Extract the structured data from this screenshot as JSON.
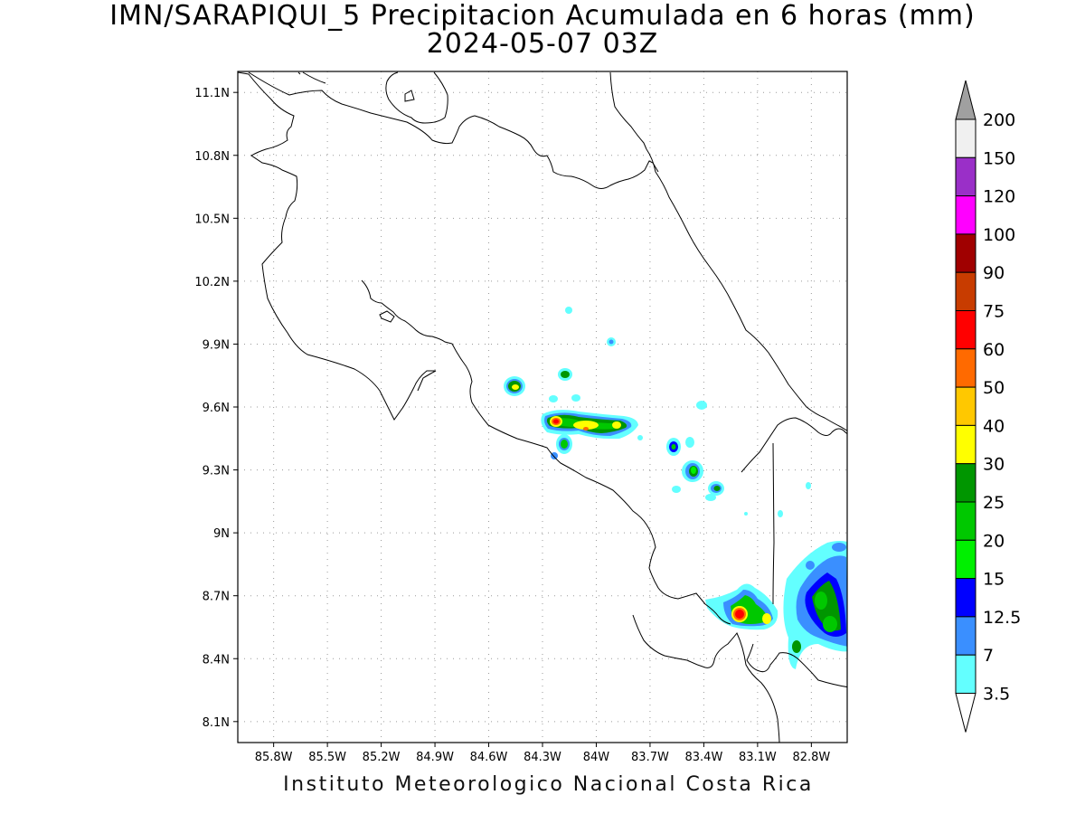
{
  "title": {
    "line1": "IMN/SARAPIQUI_5 Precipitacion Acumulada en 6 horas (mm)",
    "line2": "2024-05-07 03Z"
  },
  "footer": "Instituto Meteorologico Nacional Costa Rica",
  "map": {
    "projection": "lat-lon",
    "lon_range": [
      -86.0,
      -82.6
    ],
    "lat_range": [
      8.0,
      11.2
    ],
    "grid": "dotted",
    "lon_ticks": [
      "85.8W",
      "85.5W",
      "85.2W",
      "84.9W",
      "84.6W",
      "84.3W",
      "84W",
      "83.7W",
      "83.4W",
      "83.1W",
      "82.8W"
    ],
    "lat_ticks": [
      "11.1N",
      "10.8N",
      "10.5N",
      "10.2N",
      "9.9N",
      "9.6N",
      "9.3N",
      "9N",
      "8.7N",
      "8.4N",
      "8.1N"
    ]
  },
  "colorbar": {
    "labels": [
      "200",
      "150",
      "120",
      "100",
      "90",
      "75",
      "60",
      "50",
      "40",
      "30",
      "25",
      "20",
      "15",
      "12.5",
      "7",
      "3.5"
    ],
    "colors": [
      "#f0f0f0",
      "#9a2fc8",
      "#ff00ff",
      "#a00000",
      "#c83c00",
      "#ff0000",
      "#ff6a00",
      "#ffc800",
      "#ffff00",
      "#009600",
      "#00c800",
      "#00f000",
      "#0000ff",
      "#3a8fff",
      "#63ffff"
    ],
    "over_color": "#a0a0a0",
    "under_color": "#ffffff"
  }
}
